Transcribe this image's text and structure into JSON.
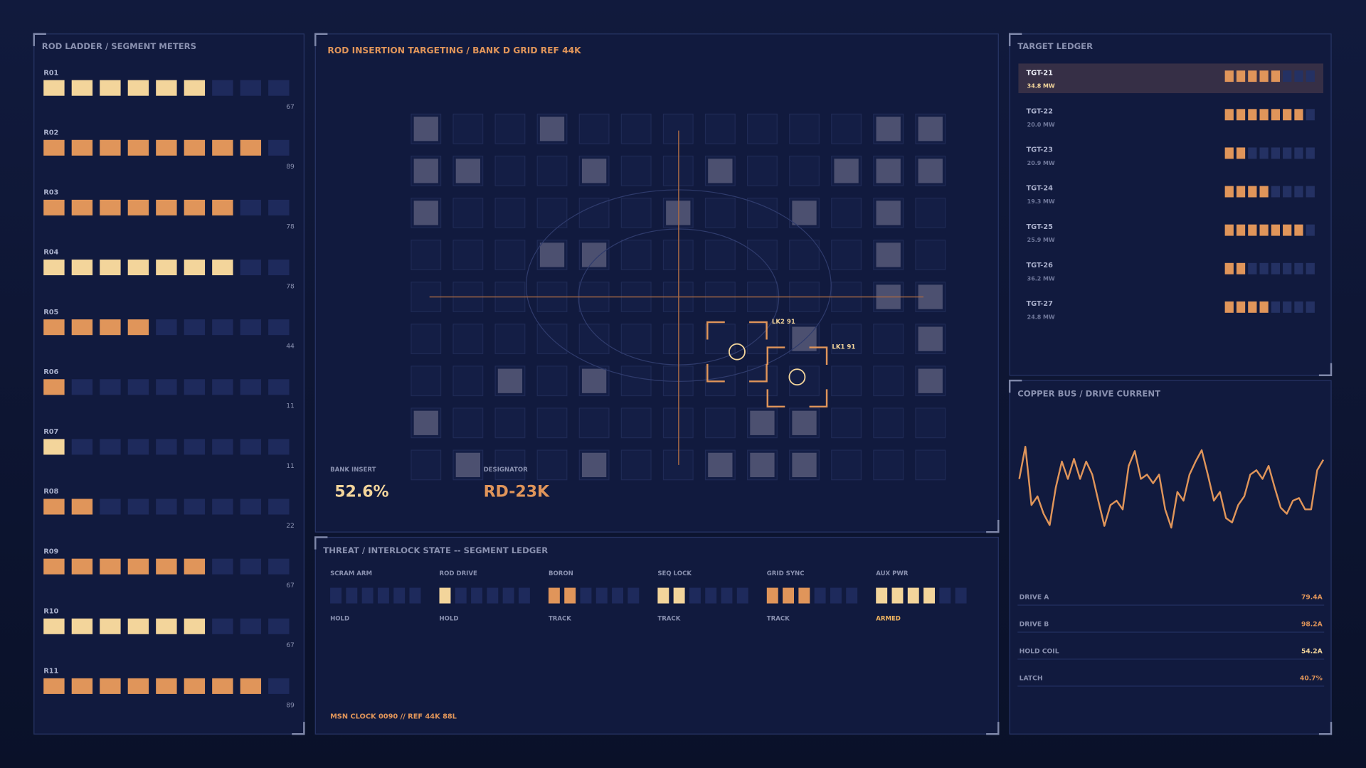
{
  "rod_ladder": {
    "title": "ROD LADDER / SEGMENT METERS",
    "rows": [
      {
        "label": "R01",
        "value": 67,
        "tone": "#f3d59b"
      },
      {
        "label": "R02",
        "value": 89,
        "tone": "#e0955a"
      },
      {
        "label": "R03",
        "value": 78,
        "tone": "#e0955a"
      },
      {
        "label": "R04",
        "value": 78,
        "tone": "#f3d59b"
      },
      {
        "label": "R05",
        "value": 44,
        "tone": "#e0955a"
      },
      {
        "label": "R06",
        "value": 11,
        "tone": "#e0955a"
      },
      {
        "label": "R07",
        "value": 11,
        "tone": "#f3d59b"
      },
      {
        "label": "R08",
        "value": 22,
        "tone": "#e0955a"
      },
      {
        "label": "R09",
        "value": 67,
        "tone": "#e0955a"
      },
      {
        "label": "R10",
        "value": 67,
        "tone": "#f3d59b"
      },
      {
        "label": "R11",
        "value": 89,
        "tone": "#e0955a"
      }
    ]
  },
  "targeting": {
    "title": "ROD INSERTION TARGETING / BANK D  GRID REF 44K",
    "locks": [
      {
        "label": "LK2 91"
      },
      {
        "label": "LK1 91"
      }
    ],
    "bank_insert": {
      "label": "BANK INSERT",
      "value": "52.6%"
    },
    "designator": {
      "label": "DESIGNATOR",
      "value": "RD-23K"
    }
  },
  "interlock": {
    "title": "THREAT / INTERLOCK STATE  --  SEGMENT LEDGER",
    "groups": [
      {
        "label": "SCRAM ARM",
        "lit": 0,
        "tone": "#e0955a",
        "state": "HOLD",
        "state_color": "#8a91b0"
      },
      {
        "label": "ROD DRIVE",
        "lit": 1,
        "tone": "#f3d59b",
        "state": "HOLD",
        "state_color": "#8a91b0"
      },
      {
        "label": "BORON",
        "lit": 2,
        "tone": "#e0955a",
        "state": "TRACK",
        "state_color": "#8a91b0"
      },
      {
        "label": "SEQ LOCK",
        "lit": 2,
        "tone": "#f3d59b",
        "state": "TRACK",
        "state_color": "#8a91b0"
      },
      {
        "label": "GRID SYNC",
        "lit": 3,
        "tone": "#e0955a",
        "state": "TRACK",
        "state_color": "#8a91b0"
      },
      {
        "label": "AUX PWR",
        "lit": 4,
        "tone": "#f3d59b",
        "state": "ARMED",
        "state_color": "#f0b460"
      }
    ],
    "footer": "MSN CLOCK 0090  //  REF 44K 88L"
  },
  "target_ledger": {
    "title": "TARGET LEDGER",
    "color": "#e0955a",
    "selected": 0,
    "rows": [
      {
        "label": "TGT-21",
        "power": "34.8 MW",
        "lit": 5
      },
      {
        "label": "TGT-22",
        "power": "20.0 MW",
        "lit": 7
      },
      {
        "label": "TGT-23",
        "power": "20.9 MW",
        "lit": 2
      },
      {
        "label": "TGT-24",
        "power": "19.3 MW",
        "lit": 4
      },
      {
        "label": "TGT-25",
        "power": "25.9 MW",
        "lit": 7
      },
      {
        "label": "TGT-26",
        "power": "36.2 MW",
        "lit": 2
      },
      {
        "label": "TGT-27",
        "power": "24.8 MW",
        "lit": 4
      }
    ]
  },
  "drive_current": {
    "title": "COPPER BUS / DRIVE CURRENT",
    "color": "#e0955a",
    "ylim": [
      0,
      100
    ],
    "trace": [
      60,
      97,
      30,
      40,
      20,
      7,
      50,
      80,
      60,
      83,
      60,
      80,
      65,
      35,
      6,
      30,
      35,
      25,
      75,
      92,
      60,
      65,
      55,
      65,
      25,
      4,
      45,
      35,
      65,
      80,
      93,
      65,
      35,
      45,
      15,
      10,
      30,
      40,
      65,
      70,
      60,
      75,
      50,
      27,
      20,
      35,
      38,
      25,
      25,
      70,
      82
    ],
    "readings": [
      {
        "label": "DRIVE A",
        "value": "79.4A",
        "color": "#e0955a"
      },
      {
        "label": "DRIVE B",
        "value": "98.2A",
        "color": "#e0955a"
      },
      {
        "label": "HOLD COIL",
        "value": "54.2A",
        "color": "#f3d59b"
      },
      {
        "label": "LATCH",
        "value": "40.7%",
        "color": "#e0955a"
      }
    ]
  }
}
